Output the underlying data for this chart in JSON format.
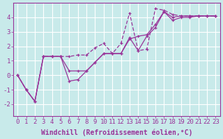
{
  "bg_color": "#c8eaea",
  "grid_color": "#ffffff",
  "line_color": "#993399",
  "xlabel": "Windchill (Refroidissement éolien,°C)",
  "ylim": [
    -2.8,
    5.0
  ],
  "xlim": [
    -0.5,
    23.5
  ],
  "yticks": [
    -2,
    -1,
    0,
    1,
    2,
    3,
    4
  ],
  "xtick_labels": [
    "0",
    "1",
    "2",
    "3",
    "4",
    "5",
    "6",
    "7",
    "8",
    "9",
    "10",
    "11",
    "12",
    "13",
    "14",
    "15",
    "16",
    "17",
    "18",
    "19",
    "20",
    "21",
    "22",
    "23"
  ],
  "series1_x": [
    0,
    1,
    2,
    3,
    4,
    5,
    6,
    7,
    8,
    9,
    10,
    11,
    12,
    13,
    14,
    15,
    16,
    17,
    18,
    19,
    20,
    21,
    22,
    23
  ],
  "series1_y": [
    0.0,
    -1.0,
    -1.8,
    1.3,
    1.3,
    1.3,
    1.3,
    1.4,
    1.4,
    1.9,
    2.2,
    1.5,
    2.2,
    4.3,
    1.7,
    1.8,
    4.6,
    4.5,
    4.2,
    4.1,
    4.1,
    4.1,
    4.1,
    4.1
  ],
  "series2_x": [
    0,
    1,
    2,
    3,
    4,
    5,
    6,
    7,
    8,
    9,
    10,
    11,
    12,
    13,
    14,
    15,
    16,
    17,
    18,
    19,
    20,
    21,
    22,
    23
  ],
  "series2_y": [
    0.0,
    -1.0,
    -1.8,
    1.3,
    1.3,
    1.3,
    -0.4,
    -0.3,
    0.3,
    0.9,
    1.5,
    1.5,
    1.5,
    2.6,
    1.7,
    2.7,
    3.3,
    4.4,
    3.8,
    4.0,
    4.0,
    4.1,
    4.1,
    4.1
  ],
  "series3_x": [
    0,
    1,
    2,
    3,
    4,
    5,
    6,
    7,
    8,
    9,
    10,
    11,
    12,
    13,
    14,
    15,
    16,
    17,
    18,
    19,
    20,
    21,
    22,
    23
  ],
  "series3_y": [
    0.0,
    -1.0,
    -1.8,
    1.3,
    1.3,
    1.3,
    0.3,
    0.3,
    0.3,
    0.9,
    1.5,
    1.5,
    1.5,
    2.5,
    2.7,
    2.8,
    3.5,
    4.4,
    4.0,
    4.1,
    4.1,
    4.1,
    4.1,
    4.1
  ],
  "xlabel_fontsize": 7.0,
  "tick_fontsize": 6.5
}
